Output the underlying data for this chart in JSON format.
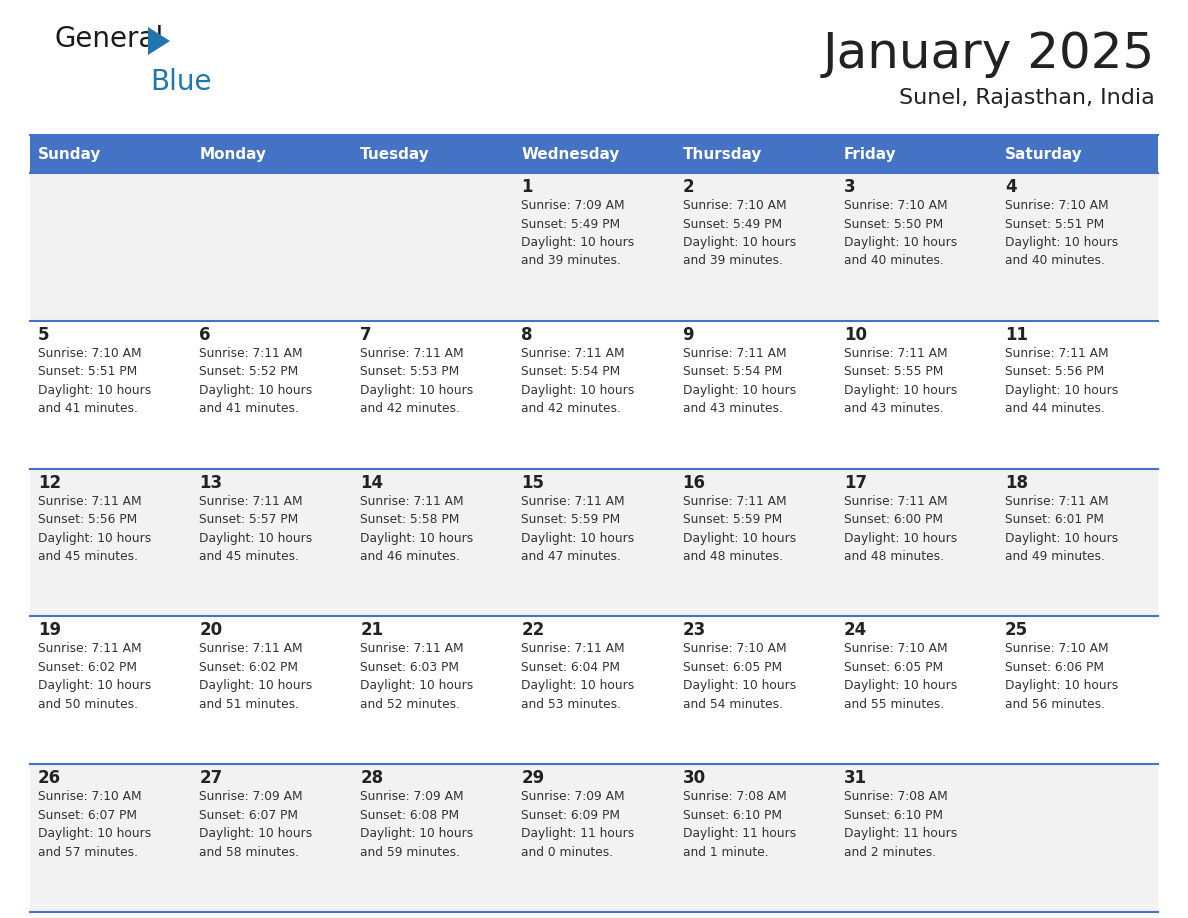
{
  "title": "January 2025",
  "subtitle": "Sunel, Rajasthan, India",
  "header_color": "#4472C4",
  "header_text_color": "#FFFFFF",
  "background_color": "#FFFFFF",
  "cell_bg_odd": "#F2F2F2",
  "cell_bg_even": "#FFFFFF",
  "border_color": "#4472C4",
  "text_color": "#222222",
  "info_text_color": "#333333",
  "days_of_week": [
    "Sunday",
    "Monday",
    "Tuesday",
    "Wednesday",
    "Thursday",
    "Friday",
    "Saturday"
  ],
  "weeks": [
    [
      {
        "day": "",
        "info": ""
      },
      {
        "day": "",
        "info": ""
      },
      {
        "day": "",
        "info": ""
      },
      {
        "day": "1",
        "info": "Sunrise: 7:09 AM\nSunset: 5:49 PM\nDaylight: 10 hours\nand 39 minutes."
      },
      {
        "day": "2",
        "info": "Sunrise: 7:10 AM\nSunset: 5:49 PM\nDaylight: 10 hours\nand 39 minutes."
      },
      {
        "day": "3",
        "info": "Sunrise: 7:10 AM\nSunset: 5:50 PM\nDaylight: 10 hours\nand 40 minutes."
      },
      {
        "day": "4",
        "info": "Sunrise: 7:10 AM\nSunset: 5:51 PM\nDaylight: 10 hours\nand 40 minutes."
      }
    ],
    [
      {
        "day": "5",
        "info": "Sunrise: 7:10 AM\nSunset: 5:51 PM\nDaylight: 10 hours\nand 41 minutes."
      },
      {
        "day": "6",
        "info": "Sunrise: 7:11 AM\nSunset: 5:52 PM\nDaylight: 10 hours\nand 41 minutes."
      },
      {
        "day": "7",
        "info": "Sunrise: 7:11 AM\nSunset: 5:53 PM\nDaylight: 10 hours\nand 42 minutes."
      },
      {
        "day": "8",
        "info": "Sunrise: 7:11 AM\nSunset: 5:54 PM\nDaylight: 10 hours\nand 42 minutes."
      },
      {
        "day": "9",
        "info": "Sunrise: 7:11 AM\nSunset: 5:54 PM\nDaylight: 10 hours\nand 43 minutes."
      },
      {
        "day": "10",
        "info": "Sunrise: 7:11 AM\nSunset: 5:55 PM\nDaylight: 10 hours\nand 43 minutes."
      },
      {
        "day": "11",
        "info": "Sunrise: 7:11 AM\nSunset: 5:56 PM\nDaylight: 10 hours\nand 44 minutes."
      }
    ],
    [
      {
        "day": "12",
        "info": "Sunrise: 7:11 AM\nSunset: 5:56 PM\nDaylight: 10 hours\nand 45 minutes."
      },
      {
        "day": "13",
        "info": "Sunrise: 7:11 AM\nSunset: 5:57 PM\nDaylight: 10 hours\nand 45 minutes."
      },
      {
        "day": "14",
        "info": "Sunrise: 7:11 AM\nSunset: 5:58 PM\nDaylight: 10 hours\nand 46 minutes."
      },
      {
        "day": "15",
        "info": "Sunrise: 7:11 AM\nSunset: 5:59 PM\nDaylight: 10 hours\nand 47 minutes."
      },
      {
        "day": "16",
        "info": "Sunrise: 7:11 AM\nSunset: 5:59 PM\nDaylight: 10 hours\nand 48 minutes."
      },
      {
        "day": "17",
        "info": "Sunrise: 7:11 AM\nSunset: 6:00 PM\nDaylight: 10 hours\nand 48 minutes."
      },
      {
        "day": "18",
        "info": "Sunrise: 7:11 AM\nSunset: 6:01 PM\nDaylight: 10 hours\nand 49 minutes."
      }
    ],
    [
      {
        "day": "19",
        "info": "Sunrise: 7:11 AM\nSunset: 6:02 PM\nDaylight: 10 hours\nand 50 minutes."
      },
      {
        "day": "20",
        "info": "Sunrise: 7:11 AM\nSunset: 6:02 PM\nDaylight: 10 hours\nand 51 minutes."
      },
      {
        "day": "21",
        "info": "Sunrise: 7:11 AM\nSunset: 6:03 PM\nDaylight: 10 hours\nand 52 minutes."
      },
      {
        "day": "22",
        "info": "Sunrise: 7:11 AM\nSunset: 6:04 PM\nDaylight: 10 hours\nand 53 minutes."
      },
      {
        "day": "23",
        "info": "Sunrise: 7:10 AM\nSunset: 6:05 PM\nDaylight: 10 hours\nand 54 minutes."
      },
      {
        "day": "24",
        "info": "Sunrise: 7:10 AM\nSunset: 6:05 PM\nDaylight: 10 hours\nand 55 minutes."
      },
      {
        "day": "25",
        "info": "Sunrise: 7:10 AM\nSunset: 6:06 PM\nDaylight: 10 hours\nand 56 minutes."
      }
    ],
    [
      {
        "day": "26",
        "info": "Sunrise: 7:10 AM\nSunset: 6:07 PM\nDaylight: 10 hours\nand 57 minutes."
      },
      {
        "day": "27",
        "info": "Sunrise: 7:09 AM\nSunset: 6:07 PM\nDaylight: 10 hours\nand 58 minutes."
      },
      {
        "day": "28",
        "info": "Sunrise: 7:09 AM\nSunset: 6:08 PM\nDaylight: 10 hours\nand 59 minutes."
      },
      {
        "day": "29",
        "info": "Sunrise: 7:09 AM\nSunset: 6:09 PM\nDaylight: 11 hours\nand 0 minutes."
      },
      {
        "day": "30",
        "info": "Sunrise: 7:08 AM\nSunset: 6:10 PM\nDaylight: 11 hours\nand 1 minute."
      },
      {
        "day": "31",
        "info": "Sunrise: 7:08 AM\nSunset: 6:10 PM\nDaylight: 11 hours\nand 2 minutes."
      },
      {
        "day": "",
        "info": ""
      }
    ]
  ]
}
